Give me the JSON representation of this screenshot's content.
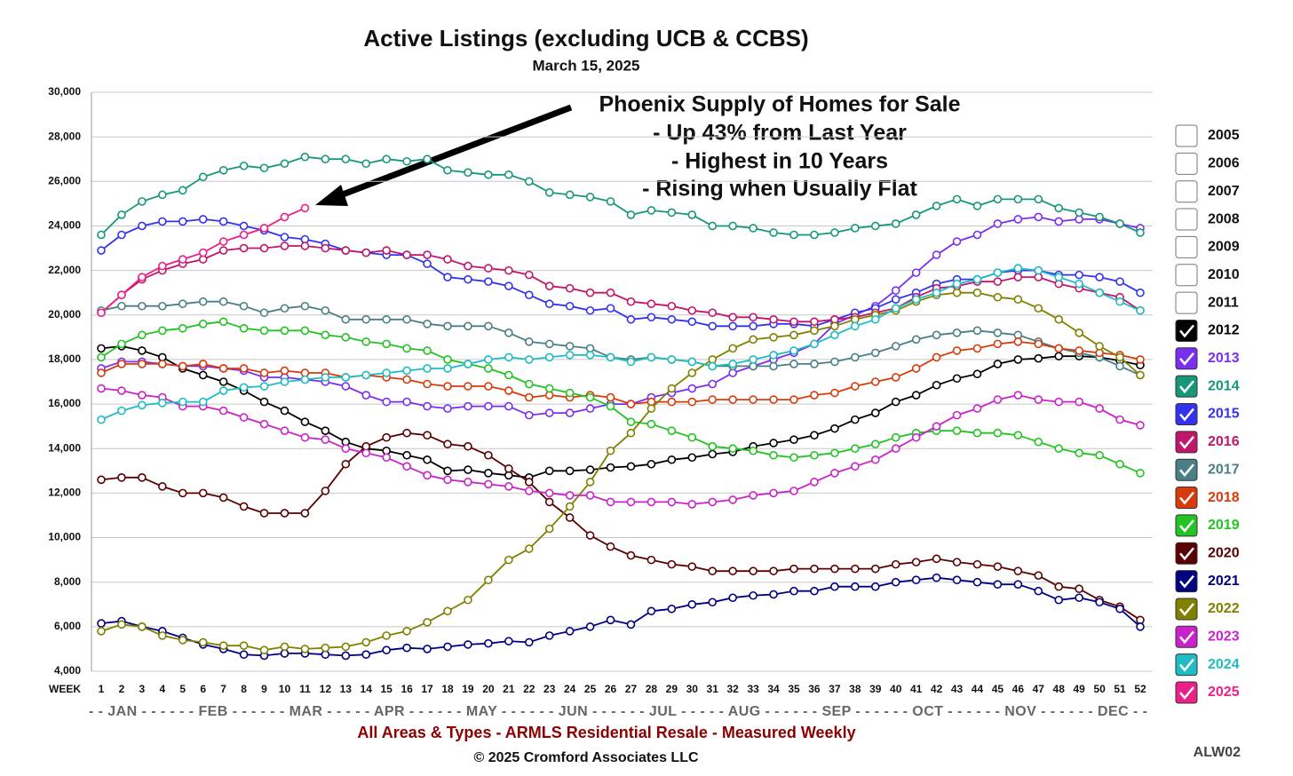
{
  "chart_data": {
    "type": "line",
    "title": "Active Listings (excluding UCB & CCBS)",
    "subtitle": "March 15, 2025",
    "x_label": "WEEK",
    "month_axis": "- - JAN - - - - - - FEB - - - - - - MAR - - - - - APR - - - - - - MAY - - - - - - JUN - - - - - - JUL - - - - - AUG - - - - - - SEP - - - - - - OCT - - - - - - NOV - - - - - - DEC - -",
    "annotation": [
      "Phoenix Supply of Homes for Sale",
      "- Up 43% from Last Year",
      "- Highest in 10 Years",
      "- Rising when Usually Flat"
    ],
    "footer": "All Areas & Types - ARMLS Residential Resale - Measured Weekly",
    "copyright": "© 2025 Cromford Associates LLC",
    "code": "ALW02",
    "legend_unchecked": [
      "2005",
      "2006",
      "2007",
      "2008",
      "2009",
      "2010",
      "2011"
    ],
    "grid": true,
    "categories": [
      "1",
      "2",
      "3",
      "4",
      "5",
      "6",
      "7",
      "8",
      "9",
      "10",
      "11",
      "12",
      "13",
      "14",
      "15",
      "16",
      "17",
      "18",
      "19",
      "20",
      "21",
      "22",
      "23",
      "24",
      "25",
      "26",
      "27",
      "28",
      "29",
      "30",
      "31",
      "32",
      "33",
      "34",
      "35",
      "36",
      "37",
      "38",
      "39",
      "40",
      "41",
      "42",
      "43",
      "44",
      "45",
      "46",
      "47",
      "48",
      "49",
      "50",
      "51",
      "52"
    ],
    "ylim": [
      4000,
      30000
    ],
    "yticks": [
      {
        "value": 4000,
        "label": "4,000"
      },
      {
        "value": 6000,
        "label": "6,000"
      },
      {
        "value": 8000,
        "label": "8,000"
      },
      {
        "value": 10000,
        "label": "10,000"
      },
      {
        "value": 12000,
        "label": "12,000"
      },
      {
        "value": 14000,
        "label": "14,000"
      },
      {
        "value": 16000,
        "label": "16,000"
      },
      {
        "value": 18000,
        "label": "18,000"
      },
      {
        "value": 20000,
        "label": "20,000"
      },
      {
        "value": 22000,
        "label": "22,000"
      },
      {
        "value": 24000,
        "label": "24,000"
      },
      {
        "value": 26000,
        "label": "26,000"
      },
      {
        "value": 28000,
        "label": "28,000"
      },
      {
        "value": 30000,
        "label": "30,000"
      }
    ],
    "series": [
      {
        "name": "2012",
        "color": "#000000",
        "values": [
          18500,
          18600,
          18400,
          18100,
          17600,
          17300,
          17000,
          16600,
          16100,
          15700,
          15200,
          14800,
          14300,
          14000,
          13900,
          13700,
          13500,
          13000,
          13050,
          12900,
          12800,
          12700,
          13000,
          13000,
          13050,
          13150,
          13200,
          13300,
          13500,
          13600,
          13750,
          13850,
          14100,
          14250,
          14400,
          14600,
          14900,
          15300,
          15600,
          16100,
          16400,
          16850,
          17150,
          17350,
          17800,
          18000,
          18050,
          18150,
          18150,
          18100,
          17950,
          17750
        ]
      },
      {
        "name": "2013",
        "color": "#7a2ff0",
        "values": [
          17600,
          17900,
          17900,
          17800,
          17700,
          17700,
          17600,
          17500,
          17200,
          17200,
          17100,
          17000,
          16800,
          16400,
          16100,
          16100,
          15900,
          15800,
          15900,
          15900,
          15900,
          15500,
          15600,
          15600,
          15800,
          16000,
          16000,
          16300,
          16500,
          16700,
          16900,
          17400,
          17700,
          18000,
          18300,
          18700,
          19600,
          20000,
          20400,
          21100,
          21900,
          22700,
          23300,
          23600,
          24100,
          24300,
          24400,
          24200,
          24300,
          24300,
          24100,
          23900
        ]
      },
      {
        "name": "2014",
        "color": "#17977a",
        "values": [
          23600,
          24500,
          25100,
          25400,
          25600,
          26200,
          26500,
          26700,
          26600,
          26800,
          27100,
          27000,
          27000,
          26800,
          27000,
          26900,
          27000,
          26500,
          26400,
          26300,
          26300,
          26000,
          25500,
          25400,
          25300,
          25100,
          24500,
          24700,
          24600,
          24500,
          24000,
          24000,
          23900,
          23700,
          23600,
          23600,
          23700,
          23900,
          24000,
          24100,
          24500,
          24900,
          25200,
          24900,
          25200,
          25200,
          25200,
          24800,
          24600,
          24400,
          24100,
          23700
        ]
      },
      {
        "name": "2015",
        "color": "#3333ee",
        "values": [
          22900,
          23600,
          24000,
          24200,
          24200,
          24300,
          24200,
          24000,
          23800,
          23500,
          23400,
          23200,
          22900,
          22800,
          22700,
          22700,
          22300,
          21700,
          21600,
          21500,
          21300,
          20900,
          20500,
          20400,
          20200,
          20300,
          19800,
          19900,
          19800,
          19700,
          19500,
          19500,
          19500,
          19600,
          19600,
          19500,
          19800,
          20100,
          20300,
          20700,
          21000,
          21400,
          21600,
          21600,
          21900,
          22000,
          22000,
          21800,
          21800,
          21700,
          21500,
          21000
        ]
      },
      {
        "name": "2016",
        "color": "#c0166b",
        "values": [
          20100,
          20900,
          21600,
          22000,
          22300,
          22500,
          22900,
          23000,
          23000,
          23100,
          23100,
          23000,
          22900,
          22800,
          22900,
          22700,
          22700,
          22500,
          22200,
          22100,
          22000,
          21800,
          21300,
          21200,
          21000,
          21000,
          20600,
          20500,
          20400,
          20200,
          20100,
          19900,
          19900,
          19800,
          19700,
          19700,
          19800,
          19900,
          20100,
          20300,
          20800,
          21200,
          21300,
          21500,
          21500,
          21700,
          21700,
          21400,
          21200,
          21000,
          20800,
          20200
        ]
      },
      {
        "name": "2017",
        "color": "#4a7f86",
        "values": [
          20200,
          20400,
          20400,
          20400,
          20500,
          20600,
          20600,
          20400,
          20100,
          20300,
          20400,
          20200,
          19800,
          19800,
          19800,
          19800,
          19600,
          19500,
          19500,
          19500,
          19200,
          18800,
          18700,
          18600,
          18500,
          18100,
          18000,
          18100,
          18000,
          17900,
          17700,
          17700,
          17700,
          17700,
          17800,
          17800,
          17900,
          18100,
          18300,
          18600,
          18900,
          19100,
          19200,
          19300,
          19200,
          19100,
          18800,
          18500,
          18300,
          18100,
          17700,
          17300
        ]
      },
      {
        "name": "2018",
        "color": "#d93a0b",
        "values": [
          17400,
          17800,
          17800,
          17800,
          17700,
          17800,
          17600,
          17600,
          17400,
          17500,
          17400,
          17400,
          17200,
          17300,
          17200,
          17100,
          16900,
          16800,
          16800,
          16800,
          16600,
          16300,
          16400,
          16300,
          16400,
          16300,
          16000,
          16100,
          16100,
          16100,
          16200,
          16200,
          16200,
          16200,
          16200,
          16400,
          16500,
          16800,
          17000,
          17200,
          17600,
          18100,
          18400,
          18500,
          18700,
          18800,
          18700,
          18500,
          18400,
          18300,
          18200,
          18000
        ]
      },
      {
        "name": "2019",
        "color": "#22c322",
        "values": [
          18100,
          18700,
          19100,
          19300,
          19400,
          19600,
          19700,
          19400,
          19300,
          19300,
          19300,
          19100,
          19000,
          18800,
          18700,
          18500,
          18400,
          18000,
          17800,
          17600,
          17300,
          16900,
          16700,
          16500,
          16300,
          15900,
          15200,
          15100,
          14800,
          14500,
          14100,
          14000,
          13900,
          13700,
          13600,
          13700,
          13800,
          14000,
          14200,
          14500,
          14700,
          14800,
          14800,
          14700,
          14700,
          14600,
          14300,
          14000,
          13800,
          13700,
          13300,
          12900
        ]
      },
      {
        "name": "2020",
        "color": "#5a0000",
        "values": [
          12600,
          12700,
          12700,
          12300,
          12000,
          12000,
          11800,
          11400,
          11100,
          11100,
          11100,
          12100,
          13300,
          14100,
          14500,
          14700,
          14600,
          14200,
          14100,
          13700,
          13100,
          12500,
          11600,
          10900,
          10100,
          9600,
          9200,
          9000,
          8800,
          8700,
          8500,
          8500,
          8500,
          8500,
          8600,
          8600,
          8600,
          8600,
          8600,
          8800,
          8900,
          9050,
          8900,
          8800,
          8700,
          8500,
          8300,
          7800,
          7700,
          7200,
          6900,
          6300
        ]
      },
      {
        "name": "2021",
        "color": "#000080",
        "values": [
          6150,
          6250,
          6000,
          5800,
          5500,
          5200,
          5000,
          4750,
          4700,
          4800,
          4800,
          4750,
          4700,
          4750,
          4950,
          5050,
          5000,
          5100,
          5200,
          5250,
          5350,
          5300,
          5600,
          5800,
          6000,
          6300,
          6100,
          6700,
          6800,
          7000,
          7100,
          7300,
          7400,
          7450,
          7600,
          7600,
          7800,
          7800,
          7800,
          8000,
          8100,
          8200,
          8100,
          8000,
          7900,
          7900,
          7600,
          7200,
          7300,
          7100,
          6800,
          6000
        ]
      },
      {
        "name": "2022",
        "color": "#808000",
        "values": [
          5800,
          6100,
          6000,
          5600,
          5400,
          5300,
          5150,
          5150,
          4950,
          5100,
          5000,
          5050,
          5100,
          5300,
          5600,
          5800,
          6200,
          6700,
          7200,
          8100,
          9000,
          9500,
          10400,
          11400,
          12500,
          13900,
          14700,
          15800,
          16700,
          17400,
          18000,
          18500,
          18900,
          19000,
          19100,
          19300,
          19500,
          19800,
          20000,
          20200,
          20600,
          20900,
          21000,
          21000,
          20800,
          20700,
          20300,
          19800,
          19200,
          18600,
          18100,
          17300
        ]
      },
      {
        "name": "2023",
        "color": "#c922c9",
        "values": [
          16700,
          16600,
          16400,
          16300,
          15900,
          15900,
          15700,
          15400,
          15100,
          14800,
          14500,
          14400,
          14000,
          13800,
          13600,
          13200,
          12800,
          12600,
          12500,
          12400,
          12300,
          12100,
          12000,
          11900,
          11900,
          11600,
          11600,
          11600,
          11600,
          11500,
          11600,
          11700,
          11900,
          12000,
          12100,
          12500,
          12900,
          13200,
          13500,
          14000,
          14500,
          15000,
          15500,
          15800,
          16200,
          16400,
          16200,
          16100,
          16100,
          15800,
          15300,
          15050
        ]
      },
      {
        "name": "2024",
        "color": "#1fbcc4",
        "values": [
          15300,
          15700,
          15950,
          16050,
          16100,
          16100,
          16600,
          16750,
          16800,
          17000,
          17100,
          17200,
          17200,
          17300,
          17400,
          17500,
          17600,
          17600,
          17800,
          18000,
          18100,
          18000,
          18100,
          18200,
          18200,
          18100,
          17900,
          18100,
          18000,
          17900,
          17700,
          17800,
          18000,
          18200,
          18400,
          18700,
          19100,
          19500,
          19800,
          20300,
          20700,
          21000,
          21400,
          21600,
          21900,
          22100,
          22000,
          21700,
          21400,
          21000,
          20600,
          20200
        ]
      },
      {
        "name": "2025",
        "color": "#ec1f86",
        "values": [
          20100,
          20900,
          21700,
          22200,
          22500,
          22800,
          23300,
          23600,
          23900,
          24400,
          24800,
          null,
          null,
          null,
          null,
          null,
          null,
          null,
          null,
          null,
          null,
          null,
          null,
          null,
          null,
          null,
          null,
          null,
          null,
          null,
          null,
          null,
          null,
          null,
          null,
          null,
          null,
          null,
          null,
          null,
          null,
          null,
          null,
          null,
          null,
          null,
          null,
          null,
          null,
          null,
          null,
          null
        ]
      }
    ]
  }
}
